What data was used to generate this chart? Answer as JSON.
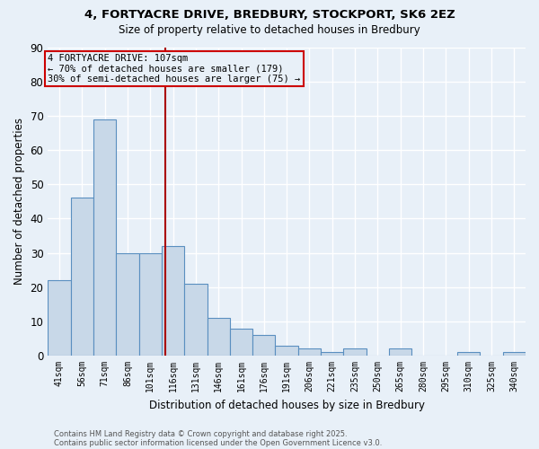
{
  "title1": "4, FORTYACRE DRIVE, BREDBURY, STOCKPORT, SK6 2EZ",
  "title2": "Size of property relative to detached houses in Bredbury",
  "xlabel": "Distribution of detached houses by size in Bredbury",
  "ylabel": "Number of detached properties",
  "categories": [
    "41sqm",
    "56sqm",
    "71sqm",
    "86sqm",
    "101sqm",
    "116sqm",
    "131sqm",
    "146sqm",
    "161sqm",
    "176sqm",
    "191sqm",
    "206sqm",
    "221sqm",
    "235sqm",
    "250sqm",
    "265sqm",
    "280sqm",
    "295sqm",
    "310sqm",
    "325sqm",
    "340sqm"
  ],
  "values": [
    22,
    46,
    69,
    30,
    30,
    32,
    21,
    11,
    8,
    6,
    3,
    2,
    1,
    2,
    0,
    2,
    0,
    0,
    1,
    0,
    1
  ],
  "bar_color": "#c8d8e8",
  "bar_edge_color": "#5a8fc0",
  "ylim": [
    0,
    90
  ],
  "yticks": [
    0,
    10,
    20,
    30,
    40,
    50,
    60,
    70,
    80,
    90
  ],
  "vline_x_bin": 4.67,
  "vline_color": "#aa0000",
  "annotation_text": "4 FORTYACRE DRIVE: 107sqm\n← 70% of detached houses are smaller (179)\n30% of semi-detached houses are larger (75) →",
  "annotation_box_color": "#cc0000",
  "footer1": "Contains HM Land Registry data © Crown copyright and database right 2025.",
  "footer2": "Contains public sector information licensed under the Open Government Licence v3.0.",
  "background_color": "#e8f0f8",
  "grid_color": "#d0dce8"
}
